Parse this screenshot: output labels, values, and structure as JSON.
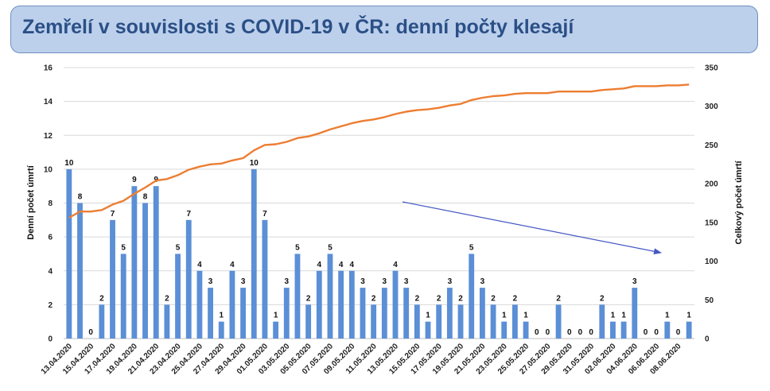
{
  "title": "Zemřelí v souvislosti s COVID-19 v ČR: denní počty klesají",
  "colors": {
    "banner_bg": "#bcd0ec",
    "title_text": "#2b4f86",
    "bars": "#5b8fd6",
    "cumulative_line": "#ed7d31",
    "trend_arrow": "#4658c4",
    "gridlines": "#d9d9d9"
  },
  "chart_data": {
    "type": "bar",
    "combo": "bar+line (secondary axis)",
    "title": "",
    "ylabel": "Denní počet úmrtí",
    "y2label": "Celkový počet úmrtí",
    "ylim": [
      0,
      16
    ],
    "yticks": [
      0,
      2,
      4,
      6,
      8,
      10,
      12,
      14,
      16
    ],
    "y2lim": [
      0,
      350
    ],
    "y2ticks": [
      0,
      50,
      100,
      150,
      200,
      250,
      300,
      350
    ],
    "grid": true,
    "legend": "none",
    "dates": [
      "13.04.2020",
      "14.04.2020",
      "15.04.2020",
      "16.04.2020",
      "17.04.2020",
      "18.04.2020",
      "19.04.2020",
      "20.04.2020",
      "21.04.2020",
      "22.04.2020",
      "23.04.2020",
      "24.04.2020",
      "25.04.2020",
      "26.04.2020",
      "27.04.2020",
      "28.04.2020",
      "29.04.2020",
      "30.04.2020",
      "01.05.2020",
      "02.05.2020",
      "03.05.2020",
      "04.05.2020",
      "05.05.2020",
      "06.05.2020",
      "07.05.2020",
      "08.05.2020",
      "09.05.2020",
      "10.05.2020",
      "11.05.2020",
      "12.05.2020",
      "13.05.2020",
      "14.05.2020",
      "15.05.2020",
      "16.05.2020",
      "17.05.2020",
      "18.05.2020",
      "19.05.2020",
      "20.05.2020",
      "21.05.2020",
      "22.05.2020",
      "23.05.2020",
      "24.05.2020",
      "25.05.2020",
      "26.05.2020",
      "27.05.2020",
      "28.05.2020",
      "29.05.2020",
      "30.05.2020",
      "31.05.2020",
      "01.06.2020",
      "02.06.2020",
      "03.06.2020",
      "04.06.2020",
      "05.06.2020",
      "06.06.2020",
      "07.06.2020",
      "08.06.2020",
      "09.06.2020"
    ],
    "x_tick_labels": [
      "13.04.2020",
      "15.04.2020",
      "17.04.2020",
      "19.04.2020",
      "21.04.2020",
      "23.04.2020",
      "25.04.2020",
      "27.04.2020",
      "29.04.2020",
      "01.05.2020",
      "03.05.2020",
      "05.05.2020",
      "07.05.2020",
      "09.05.2020",
      "11.05.2020",
      "13.05.2020",
      "15.05.2020",
      "17.05.2020",
      "19.05.2020",
      "21.05.2020",
      "23.05.2020",
      "25.05.2020",
      "27.05.2020",
      "29.05.2020",
      "31.05.2020",
      "02.06.2020",
      "04.06.2020",
      "06.06.2020",
      "08.06.2020"
    ],
    "series": [
      {
        "kind": "bar",
        "axis": "left",
        "values": [
          10,
          8,
          0,
          2,
          7,
          5,
          9,
          8,
          9,
          2,
          5,
          7,
          4,
          3,
          1,
          4,
          3,
          10,
          7,
          1,
          3,
          5,
          2,
          4,
          5,
          4,
          4,
          3,
          2,
          3,
          4,
          3,
          2,
          1,
          2,
          3,
          2,
          5,
          3,
          2,
          1,
          2,
          1,
          0,
          0,
          2,
          0,
          0,
          0,
          2,
          1,
          1,
          3,
          0,
          0,
          1,
          0,
          1
        ]
      },
      {
        "kind": "line",
        "axis": "right",
        "values": [
          156,
          164,
          164,
          166,
          173,
          178,
          187,
          195,
          204,
          206,
          211,
          218,
          222,
          225,
          226,
          230,
          233,
          243,
          250,
          251,
          254,
          259,
          261,
          265,
          270,
          274,
          278,
          281,
          283,
          286,
          290,
          293,
          295,
          296,
          298,
          301,
          303,
          308,
          311,
          313,
          314,
          316,
          317,
          317,
          317,
          319,
          319,
          319,
          319,
          321,
          322,
          323,
          326,
          326,
          326,
          327,
          327,
          328
        ]
      }
    ]
  }
}
